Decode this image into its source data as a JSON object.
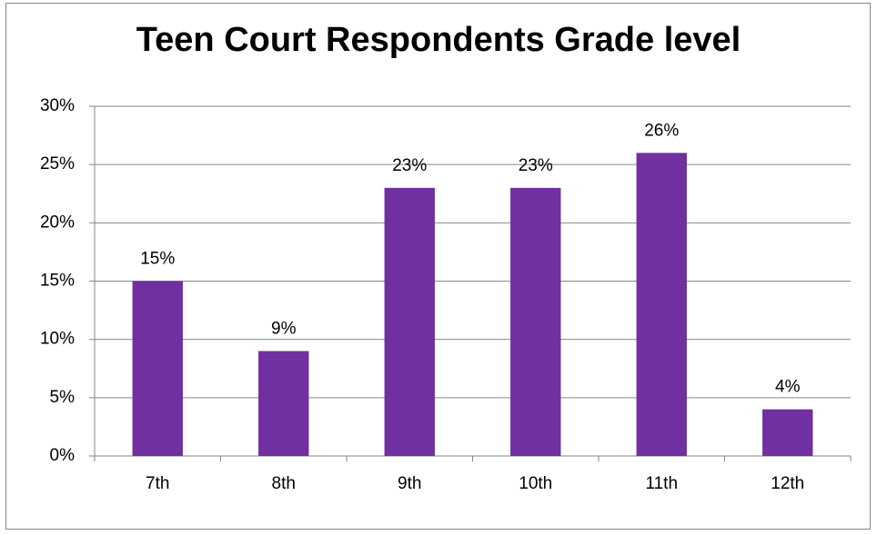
{
  "chart_data": {
    "type": "bar",
    "title": "Teen Court Respondents Grade level",
    "categories": [
      "7th",
      "8th",
      "9th",
      "10th",
      "11th",
      "12th"
    ],
    "values": [
      15,
      9,
      23,
      23,
      26,
      4
    ],
    "value_labels": [
      "15%",
      "9%",
      "23%",
      "23%",
      "26%",
      "4%"
    ],
    "color": "#7030a0",
    "ylim": [
      0,
      30
    ],
    "yticks": [
      {
        "value": 0,
        "label": "0%"
      },
      {
        "value": 5,
        "label": "5%"
      },
      {
        "value": 10,
        "label": "10%"
      },
      {
        "value": 15,
        "label": "15%"
      },
      {
        "value": 20,
        "label": "20%"
      },
      {
        "value": 25,
        "label": "25%"
      },
      {
        "value": 30,
        "label": "30%"
      }
    ],
    "grid": true
  }
}
